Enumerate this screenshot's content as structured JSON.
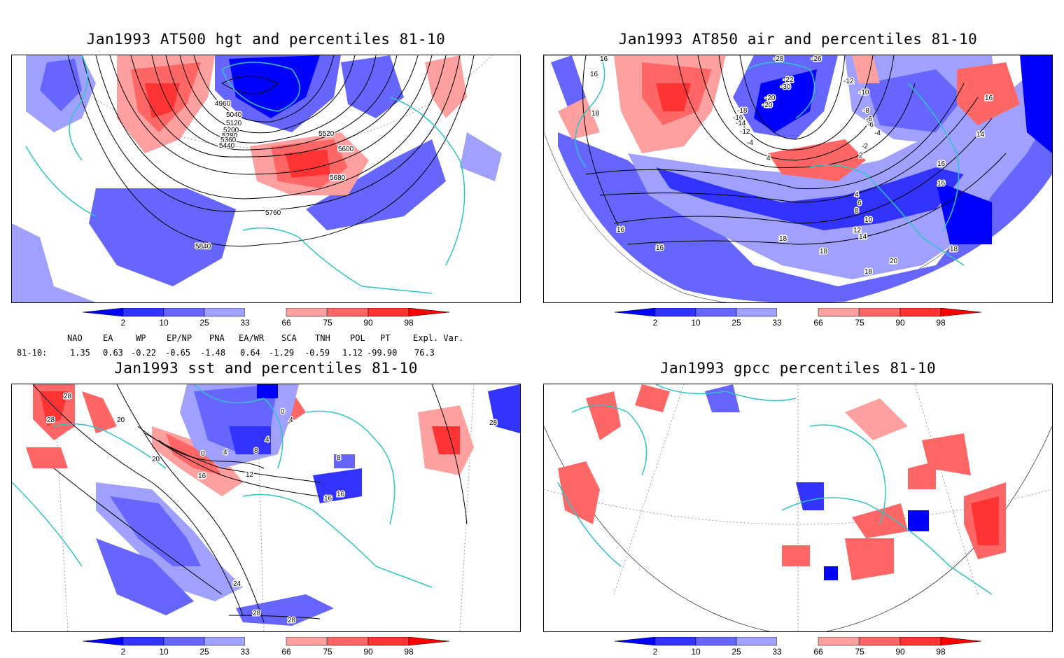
{
  "panels": [
    {
      "title": "Jan1993 AT500 hgt and percentiles 81-10",
      "contour_labels": [
        "4960",
        "5040",
        "5120",
        "5200",
        "5280",
        "5360",
        "5440",
        "5520",
        "5600",
        "5680",
        "5760",
        "5840"
      ]
    },
    {
      "title": "Jan1993 AT850 air and percentiles 81-10",
      "contour_labels": [
        "16",
        "16",
        "-28",
        "-26",
        "-12",
        "-10",
        "-8",
        "-6",
        "-4",
        "-2",
        "-30",
        "-20",
        "-18",
        "-16",
        "-14",
        "-12",
        "-4",
        "16",
        "14",
        "4",
        "2",
        "4",
        "6",
        "8",
        "10",
        "12",
        "14",
        "16",
        "16",
        "18",
        "18",
        "18",
        "20",
        "16",
        "16",
        "18",
        "18",
        "-20",
        "-22",
        "-6"
      ]
    },
    {
      "title": "Jan1993 sst and percentiles 81-10",
      "contour_labels": [
        "28",
        "28",
        "20",
        "20",
        "16",
        "12",
        "0",
        "4",
        "8",
        "4",
        "0",
        "4",
        "8",
        "16",
        "16",
        "24",
        "28",
        "28",
        "28"
      ]
    },
    {
      "title": "Jan1993 gpcc percentiles 81-10",
      "contour_labels": []
    }
  ],
  "colorbar": {
    "labels": [
      "2",
      "10",
      "25",
      "33",
      "66",
      "75",
      "90",
      "98"
    ],
    "colors": [
      "#0000ff",
      "#3333ff",
      "#6666ff",
      "#a0a0ff",
      "#ffa0a0",
      "#ff6666",
      "#ff3333",
      "#ff0000"
    ]
  },
  "indices": {
    "names": [
      "NAO",
      "EA",
      "WP",
      "EP/NP",
      "PNA",
      "EA/WR",
      "SCA",
      "TNH",
      "POL",
      "PT",
      "Expl. Var."
    ],
    "row_label": "81-10:",
    "values": [
      "1.35",
      "0.63",
      "-0.22",
      "-0.65",
      "-1.48",
      "0.64",
      "-1.29",
      "-0.59",
      "1.12",
      "-99.90",
      "76.3"
    ]
  },
  "map_colors": {
    "coast": "#2fc4c4",
    "grid": "#9a9a9a",
    "contour": "#000000"
  }
}
